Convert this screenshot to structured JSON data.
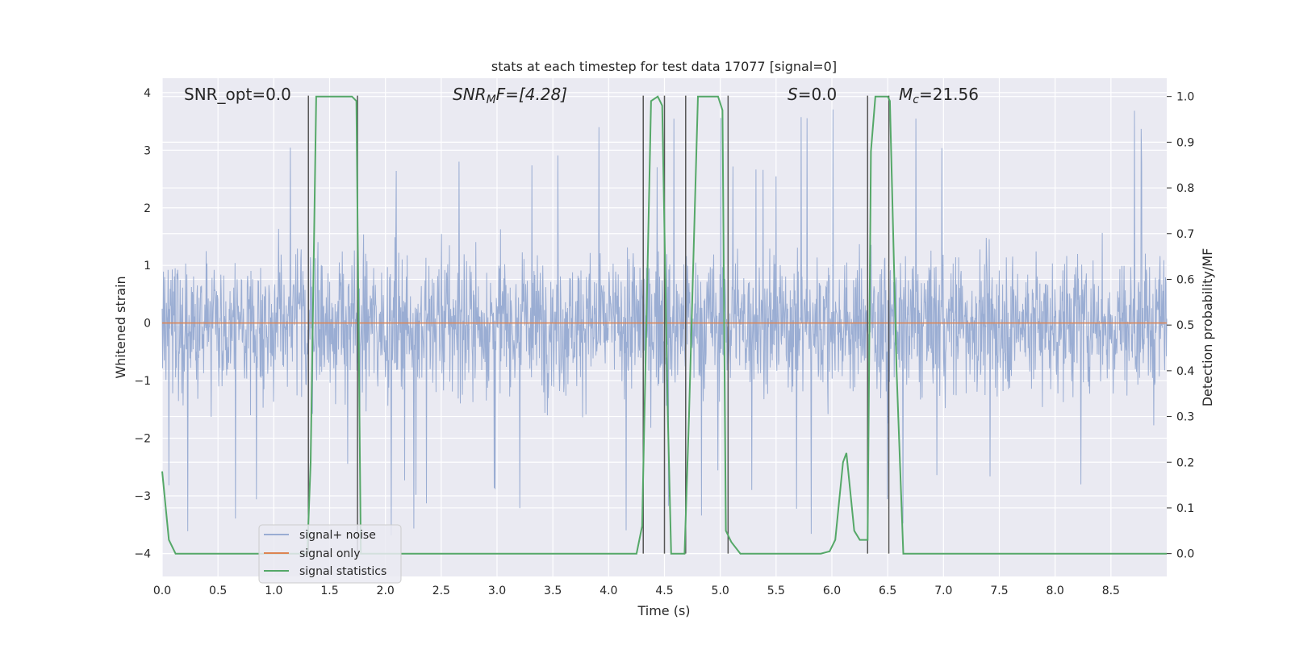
{
  "chart_data": {
    "type": "line",
    "title": "stats at each timestep for test data 17077 [signal=0]",
    "xlabel": "Time (s)",
    "ylabel_left": "Whitened strain",
    "ylabel_right": "Detection probability/MF",
    "xlim": [
      0.0,
      9.0
    ],
    "ylim_left": [
      -4.4,
      4.25
    ],
    "ylim_right": [
      -0.05,
      1.04
    ],
    "x_ticks": [
      "0.0",
      "0.5",
      "1.0",
      "1.5",
      "2.0",
      "2.5",
      "3.0",
      "3.5",
      "4.0",
      "4.5",
      "5.0",
      "5.5",
      "6.0",
      "6.5",
      "7.0",
      "7.5",
      "8.0",
      "8.5"
    ],
    "y_left_ticks": [
      "4",
      "3",
      "2",
      "1",
      "0",
      "−1",
      "−2",
      "−3",
      "−4"
    ],
    "y_right_ticks": [
      "1.0",
      "0.9",
      "0.8",
      "0.7",
      "0.6",
      "0.5",
      "0.4",
      "0.3",
      "0.2",
      "0.1",
      "0.0"
    ],
    "grid": true,
    "background": "#eaeaf2",
    "annotations": {
      "snr_opt": "SNR_opt=0.0",
      "snr_mf_a": "SNR",
      "snr_mf_b": "M",
      "snr_mf_c": "F=[4.28]",
      "s_a": "S",
      "s_b": "=0.0",
      "mc_a": "M",
      "mc_b": "c",
      "mc_c": "=21.56"
    },
    "series": [
      {
        "name": "signal+ noise",
        "color": "#9aadd3",
        "description": "noise strain trace",
        "envelope_upper": 2.3,
        "envelope_lower": -2.0,
        "spike_max": 3.95,
        "spike_min": -4.0
      },
      {
        "name": "signal only",
        "color": "#dd8452",
        "x": [
          0.0,
          9.0
        ],
        "y": [
          0.0,
          0.0
        ]
      },
      {
        "name": "signal statistics",
        "color": "#55a868",
        "x": [
          0.0,
          0.06,
          0.12,
          1.3,
          1.33,
          1.38,
          1.7,
          1.74,
          1.78,
          4.25,
          4.3,
          4.38,
          4.44,
          4.48,
          4.53,
          4.56,
          4.68,
          4.72,
          4.8,
          4.98,
          5.02,
          5.05,
          5.1,
          5.18,
          5.6,
          5.9,
          5.98,
          6.03,
          6.1,
          6.13,
          6.2,
          6.25,
          6.32,
          6.35,
          6.39,
          6.45,
          6.5,
          6.52,
          6.58,
          6.64,
          6.68,
          9.0
        ],
        "y": [
          0.18,
          0.03,
          0.0,
          0.0,
          0.2,
          1.0,
          1.0,
          0.99,
          0.0,
          0.0,
          0.06,
          0.99,
          1.0,
          0.98,
          0.3,
          0.0,
          0.0,
          0.3,
          1.0,
          1.0,
          0.97,
          0.05,
          0.025,
          0.0,
          0.0,
          0.0,
          0.005,
          0.03,
          0.2,
          0.22,
          0.05,
          0.03,
          0.03,
          0.88,
          1.0,
          1.0,
          1.0,
          0.99,
          0.4,
          0.0,
          0.0,
          0.0
        ]
      }
    ],
    "vertical_markers": {
      "color": "#555555",
      "x": [
        1.31,
        1.75,
        4.31,
        4.5,
        4.69,
        5.07,
        6.32,
        6.51
      ]
    },
    "legend": {
      "placement": "lower-left",
      "labels": [
        "signal+ noise",
        "signal only",
        "signal statistics"
      ]
    }
  }
}
